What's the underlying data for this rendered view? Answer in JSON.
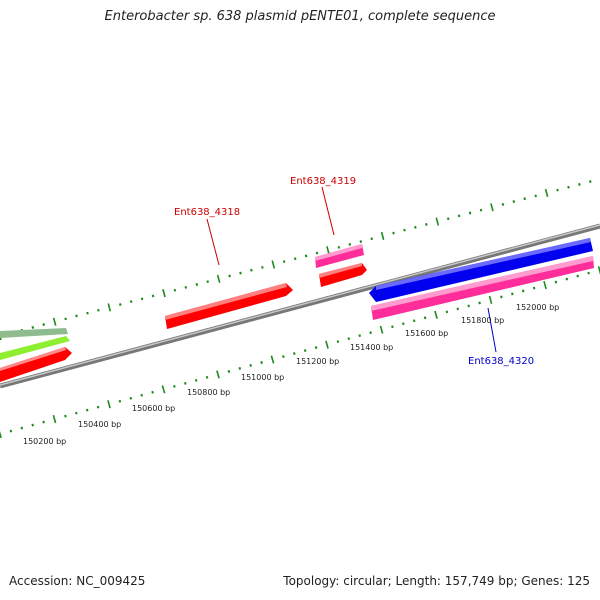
{
  "title": "Enterobacter sp. 638 plasmid pENTE01, complete sequence",
  "footer": {
    "accession": "Accession: NC_009425",
    "summary": "Topology: circular; Length: 157,749 bp; Genes: 125"
  },
  "colors": {
    "backbone": "#8a8a8a",
    "ticks": "#1a8a1a",
    "red_gene": "#ff0000",
    "pink_gene": "#ff2d9a",
    "blue_gene": "#0000ee",
    "green_gene": "#90ee30",
    "sage_gene": "#8fbc8f",
    "label_red": "#cc0000",
    "label_blue": "#0000cc"
  },
  "gene_labels": [
    {
      "id": "lbl-4318",
      "text": "Ent638_4318",
      "color": "label_red"
    },
    {
      "id": "lbl-4319",
      "text": "Ent638_4319",
      "color": "label_red"
    },
    {
      "id": "lbl-4320",
      "text": "Ent638_4320",
      "color": "label_blue"
    }
  ],
  "bp_labels": [
    "150200 bp",
    "150400 bp",
    "150600 bp",
    "150800 bp",
    "151000 bp",
    "151200 bp",
    "151400 bp",
    "151600 bp",
    "151800 bp",
    "152000 bp"
  ]
}
